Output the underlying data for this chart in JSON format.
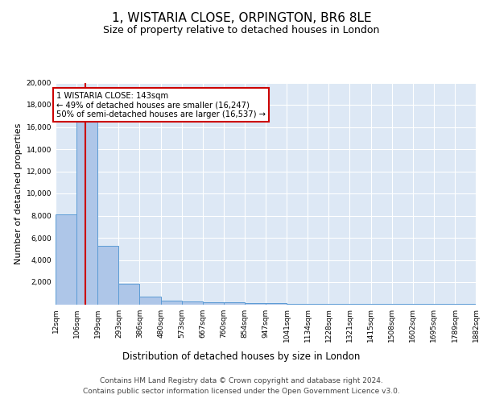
{
  "title1": "1, WISTARIA CLOSE, ORPINGTON, BR6 8LE",
  "title2": "Size of property relative to detached houses in London",
  "xlabel": "Distribution of detached houses by size in London",
  "ylabel": "Number of detached properties",
  "bin_edges": [
    12,
    106,
    199,
    293,
    386,
    480,
    573,
    667,
    760,
    854,
    947,
    1041,
    1134,
    1228,
    1321,
    1415,
    1508,
    1602,
    1695,
    1789,
    1882
  ],
  "bar_heights": [
    8100,
    16500,
    5300,
    1850,
    700,
    300,
    220,
    180,
    170,
    130,
    80,
    50,
    35,
    25,
    20,
    15,
    12,
    10,
    8,
    6
  ],
  "bar_color": "#aec6e8",
  "bar_edge_color": "#5b9bd5",
  "bg_color": "#dde8f5",
  "red_line_x": 143,
  "annotation_line1": "1 WISTARIA CLOSE: 143sqm",
  "annotation_line2": "← 49% of detached houses are smaller (16,247)",
  "annotation_line3": "50% of semi-detached houses are larger (16,537) →",
  "annotation_box_color": "#ffffff",
  "annotation_edge_color": "#cc0000",
  "ylim": [
    0,
    20000
  ],
  "yticks": [
    0,
    2000,
    4000,
    6000,
    8000,
    10000,
    12000,
    14000,
    16000,
    18000,
    20000
  ],
  "footer1": "Contains HM Land Registry data © Crown copyright and database right 2024.",
  "footer2": "Contains public sector information licensed under the Open Government Licence v3.0.",
  "title1_fontsize": 11,
  "title2_fontsize": 9,
  "tick_label_fontsize": 6.5,
  "ylabel_fontsize": 8,
  "xlabel_fontsize": 8.5,
  "footer_fontsize": 6.5
}
